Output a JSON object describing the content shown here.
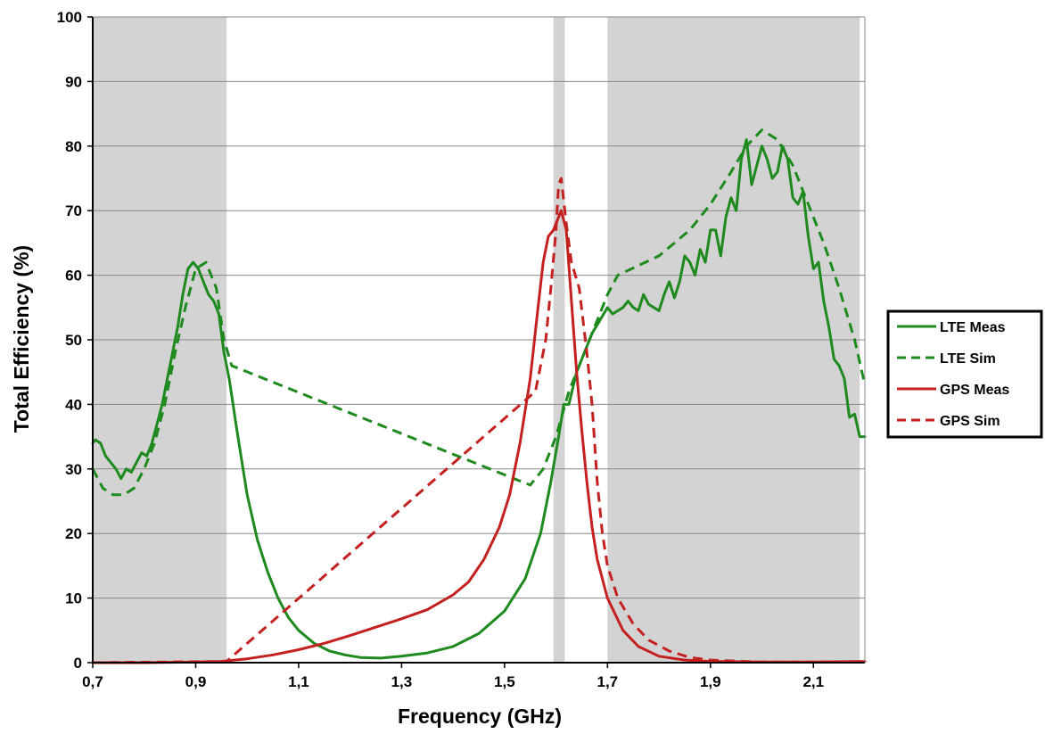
{
  "chart_data": {
    "type": "line",
    "title": "",
    "xlabel": "Frequency (GHz)",
    "ylabel": "Total  Efficiency (%)",
    "xlim": [
      0.7,
      2.2
    ],
    "ylim": [
      0,
      100
    ],
    "x_ticks": [
      "0,7",
      "0,9",
      "1,1",
      "1,3",
      "1,5",
      "1,7",
      "1,9",
      "2,1"
    ],
    "x_tick_values": [
      0.7,
      0.9,
      1.1,
      1.3,
      1.5,
      1.7,
      1.9,
      2.1
    ],
    "y_ticks": [
      "0",
      "10",
      "20",
      "30",
      "40",
      "50",
      "60",
      "70",
      "80",
      "90",
      "100"
    ],
    "y_tick_values": [
      0,
      10,
      20,
      30,
      40,
      50,
      60,
      70,
      80,
      90,
      100
    ],
    "grid": "horizontal",
    "legend_position": "right",
    "shaded_bands": [
      {
        "x0": 0.7,
        "x1": 0.96,
        "color": "#d3d3d3"
      },
      {
        "x0": 1.595,
        "x1": 1.617,
        "color": "#d3d3d3"
      },
      {
        "x0": 1.7,
        "x1": 2.19,
        "color": "#d3d3d3"
      }
    ],
    "series": [
      {
        "name": "LTE Meas",
        "color": "#1e8a1e",
        "dash": "solid",
        "x": [
          0.7,
          0.705,
          0.715,
          0.725,
          0.735,
          0.745,
          0.755,
          0.765,
          0.775,
          0.785,
          0.795,
          0.805,
          0.815,
          0.825,
          0.835,
          0.845,
          0.855,
          0.865,
          0.875,
          0.885,
          0.895,
          0.905,
          0.915,
          0.925,
          0.935,
          0.945,
          0.955,
          0.965,
          0.98,
          1.0,
          1.02,
          1.04,
          1.06,
          1.08,
          1.1,
          1.13,
          1.16,
          1.19,
          1.22,
          1.26,
          1.3,
          1.35,
          1.4,
          1.45,
          1.5,
          1.54,
          1.57,
          1.59,
          1.605,
          1.615,
          1.625,
          1.64,
          1.655,
          1.67,
          1.685,
          1.7,
          1.71,
          1.72,
          1.73,
          1.74,
          1.75,
          1.76,
          1.77,
          1.78,
          1.79,
          1.8,
          1.81,
          1.82,
          1.83,
          1.84,
          1.85,
          1.86,
          1.87,
          1.88,
          1.89,
          1.9,
          1.91,
          1.92,
          1.93,
          1.94,
          1.95,
          1.96,
          1.97,
          1.98,
          1.99,
          2.0,
          2.01,
          2.02,
          2.03,
          2.04,
          2.05,
          2.06,
          2.07,
          2.08,
          2.09,
          2.1,
          2.11,
          2.12,
          2.13,
          2.14,
          2.15,
          2.16,
          2.17,
          2.18,
          2.19,
          2.2
        ],
        "y": [
          34,
          34.5,
          34,
          32,
          31,
          30,
          28.5,
          30,
          29.5,
          31,
          32.5,
          32,
          34,
          37,
          40,
          44,
          48,
          52,
          57,
          61,
          62,
          61,
          59,
          57,
          56,
          54,
          48,
          44,
          36,
          26,
          19,
          14,
          10,
          7,
          5,
          3,
          1.8,
          1.2,
          0.8,
          0.7,
          1.0,
          1.5,
          2.5,
          4.5,
          8,
          13,
          20,
          28,
          35,
          40,
          40,
          45,
          48,
          51,
          53,
          55,
          54,
          54.5,
          55,
          56,
          55,
          54.5,
          57,
          55.5,
          55,
          54.5,
          57,
          59,
          56.5,
          59,
          63,
          62,
          60,
          64,
          62,
          67,
          67,
          63,
          69,
          72,
          70,
          78,
          81,
          74,
          77,
          80,
          78,
          75,
          76,
          80,
          78,
          72,
          71,
          73,
          66,
          61,
          62,
          56,
          52,
          47,
          46,
          44,
          38,
          38.5,
          35,
          35
        ]
      },
      {
        "name": "LTE Sim",
        "color": "#1e8a1e",
        "dash": "dashed",
        "x": [
          0.7,
          0.72,
          0.74,
          0.76,
          0.78,
          0.8,
          0.82,
          0.84,
          0.86,
          0.88,
          0.9,
          0.92,
          0.94,
          0.955,
          0.97,
          1.55,
          1.575,
          1.6,
          1.625,
          1.65,
          1.675,
          1.7,
          1.72,
          1.8,
          1.86,
          1.9,
          1.94,
          1.97,
          2.0,
          2.03,
          2.06,
          2.09,
          2.12,
          2.15,
          2.18,
          2.2
        ],
        "y": [
          30,
          27,
          26,
          26,
          27,
          30,
          34,
          40,
          48,
          55,
          61,
          62,
          58,
          50,
          46,
          27.5,
          30,
          35,
          42,
          47,
          52,
          57,
          60,
          63,
          67,
          71,
          76,
          80,
          82.5,
          81,
          77,
          71,
          65,
          58,
          50,
          43
        ]
      },
      {
        "name": "GPS Meas",
        "color": "#c42020",
        "dash": "solid",
        "x": [
          0.7,
          0.8,
          0.9,
          0.95,
          1.0,
          1.05,
          1.1,
          1.15,
          1.2,
          1.25,
          1.3,
          1.35,
          1.4,
          1.43,
          1.46,
          1.49,
          1.51,
          1.53,
          1.55,
          1.565,
          1.575,
          1.585,
          1.595,
          1.605,
          1.61,
          1.62,
          1.63,
          1.64,
          1.65,
          1.66,
          1.67,
          1.68,
          1.7,
          1.73,
          1.76,
          1.8,
          1.85,
          1.9,
          2.0,
          2.1,
          2.2
        ],
        "y": [
          0,
          0,
          0.1,
          0.2,
          0.6,
          1.2,
          2.0,
          3.0,
          4.2,
          5.5,
          6.8,
          8.2,
          10.5,
          12.5,
          16,
          21,
          26,
          34,
          44,
          55,
          62,
          66,
          67,
          69,
          70,
          67,
          56,
          45,
          36,
          28,
          21,
          16,
          10,
          5,
          2.5,
          1.0,
          0.4,
          0.2,
          0.1,
          0.1,
          0.2
        ]
      },
      {
        "name": "GPS Sim",
        "color": "#c42020",
        "dash": "dashed",
        "x": [
          0.7,
          0.96,
          1.56,
          1.58,
          1.59,
          1.6,
          1.605,
          1.61,
          1.62,
          1.63,
          1.645,
          1.66,
          1.67,
          1.68,
          1.69,
          1.7,
          1.72,
          1.75,
          1.78,
          1.82,
          1.86,
          1.9,
          2.0,
          2.1,
          2.2
        ],
        "y": [
          0,
          0.2,
          42,
          50,
          58,
          67,
          74,
          75,
          68,
          62,
          58,
          48,
          40,
          28,
          20,
          15,
          10,
          6,
          3.5,
          1.8,
          0.8,
          0.4,
          0.1,
          0.1,
          0.1
        ]
      }
    ]
  }
}
